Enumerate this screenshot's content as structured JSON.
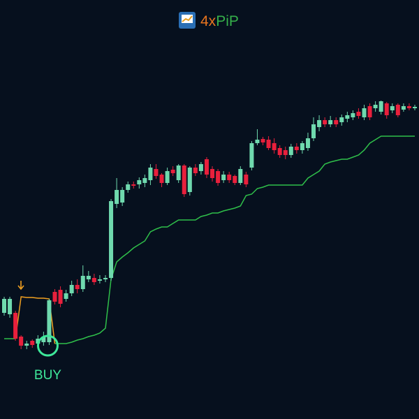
{
  "brand": {
    "parts": [
      "4x",
      "PiP"
    ]
  },
  "chart_data": {
    "type": "candlestick",
    "ylim": [
      0,
      600
    ],
    "up_color": "#6fd9ae",
    "down_color": "#e8203c",
    "open": [
      152,
      150,
      152,
      118,
      105,
      112,
      108,
      110,
      110,
      182,
      185,
      172,
      180,
      192,
      186,
      200,
      202,
      198,
      200,
      202,
      308,
      310,
      328,
      336,
      336,
      338,
      342,
      358,
      350,
      338,
      357,
      342,
      363,
      325,
      360,
      355,
      372,
      358,
      355,
      342,
      350,
      348,
      338,
      350,
      360,
      395,
      401,
      400,
      395,
      388,
      385,
      378,
      390,
      385,
      388,
      402,
      418,
      428,
      422,
      428,
      425,
      430,
      432,
      440,
      432,
      448,
      445,
      440,
      452,
      442,
      450,
      443,
      448,
      445
    ],
    "high": [
      175,
      175,
      155,
      120,
      112,
      114,
      120,
      125,
      172,
      186,
      190,
      185,
      198,
      200,
      220,
      212,
      208,
      206,
      206,
      315,
      345,
      332,
      340,
      340,
      346,
      350,
      365,
      365,
      352,
      360,
      362,
      365,
      365,
      362,
      365,
      368,
      375,
      362,
      358,
      355,
      354,
      350,
      362,
      354,
      398,
      415,
      404,
      405,
      402,
      392,
      390,
      394,
      395,
      398,
      410,
      432,
      435,
      432,
      434,
      432,
      436,
      440,
      442,
      445,
      450,
      452,
      455,
      456,
      454,
      452,
      452,
      452,
      452,
      450
    ],
    "low": [
      148,
      145,
      112,
      100,
      100,
      102,
      104,
      105,
      106,
      164,
      160,
      168,
      176,
      180,
      182,
      196,
      192,
      194,
      196,
      198,
      302,
      305,
      324,
      330,
      330,
      332,
      335,
      344,
      332,
      335,
      348,
      338,
      318,
      320,
      348,
      350,
      345,
      340,
      334,
      338,
      338,
      335,
      335,
      332,
      356,
      392,
      392,
      385,
      380,
      374,
      372,
      374,
      380,
      380,
      384,
      398,
      412,
      418,
      418,
      418,
      420,
      425,
      428,
      430,
      428,
      428,
      440,
      436,
      430,
      438,
      432,
      440,
      442,
      442
    ],
    "close": [
      172,
      172,
      115,
      105,
      108,
      106,
      115,
      118,
      170,
      168,
      165,
      180,
      192,
      186,
      205,
      205,
      196,
      200,
      202,
      312,
      328,
      328,
      336,
      334,
      342,
      345,
      360,
      348,
      338,
      355,
      352,
      363,
      322,
      360,
      352,
      365,
      350,
      345,
      338,
      350,
      342,
      338,
      358,
      336,
      395,
      400,
      396,
      388,
      385,
      378,
      378,
      390,
      385,
      395,
      402,
      422,
      428,
      422,
      428,
      422,
      432,
      435,
      438,
      434,
      445,
      432,
      450,
      455,
      435,
      448,
      435,
      448,
      445,
      447
    ],
    "series": [
      {
        "color": "#2fbf4a",
        "values": [
          115,
          115,
          115,
          null,
          null,
          null,
          null,
          null,
          null,
          108,
          108,
          108,
          110,
          113,
          115,
          118,
          120,
          123,
          130,
          200,
          225,
          232,
          238,
          245,
          250,
          255,
          268,
          272,
          275,
          275,
          280,
          285,
          285,
          285,
          285,
          290,
          292,
          295,
          295,
          298,
          300,
          302,
          305,
          320,
          322,
          330,
          332,
          335,
          335,
          335,
          335,
          335,
          335,
          335,
          345,
          350,
          355,
          365,
          368,
          370,
          372,
          372,
          375,
          378,
          385,
          395,
          400,
          405,
          405,
          405,
          405,
          405,
          405,
          405
        ]
      },
      {
        "color": "#f0a020",
        "values": [
          null,
          null,
          115,
          175,
          174,
          174,
          173,
          173,
          172,
          108,
          null,
          null,
          null,
          null,
          null,
          null,
          null,
          null,
          null,
          null,
          null,
          null,
          null,
          null,
          null,
          null,
          null,
          null,
          null,
          null,
          null,
          null,
          null,
          null,
          null,
          null,
          null,
          null,
          null,
          null,
          null,
          null,
          null,
          null,
          null,
          null,
          null,
          null,
          null,
          null,
          null,
          null,
          null,
          null,
          null,
          null,
          null,
          null,
          null,
          null,
          null,
          null,
          null,
          null,
          null,
          null,
          null,
          null,
          null,
          null,
          null,
          null,
          null,
          null
        ]
      }
    ],
    "signal": {
      "label": "BUY",
      "index": 8
    }
  }
}
